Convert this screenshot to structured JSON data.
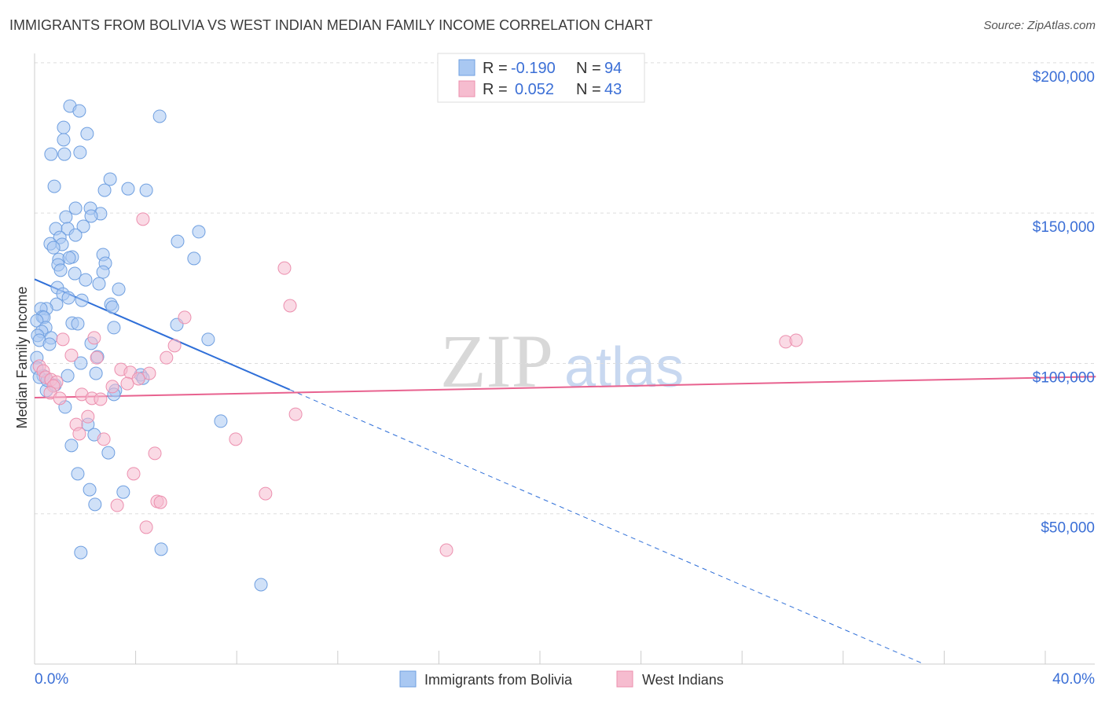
{
  "title": "IMMIGRANTS FROM BOLIVIA VS WEST INDIAN MEDIAN FAMILY INCOME CORRELATION CHART",
  "source": "Source: ZipAtlas.com",
  "watermark": "ZIPatlas",
  "colors": {
    "blue": "#a9c8f2",
    "blue_stroke": "#6f9fe0",
    "blue_line": "#2f6fd8",
    "pink": "#f6bccf",
    "pink_stroke": "#ec8fae",
    "pink_line": "#e8628f",
    "accent_text": "#3b6fd6"
  },
  "chart_data": {
    "type": "scatter",
    "title": "IMMIGRANTS FROM BOLIVIA VS WEST INDIAN MEDIAN FAMILY INCOME CORRELATION CHART",
    "xlabel": "",
    "ylabel": "Median Family Income",
    "x_unit": "%",
    "y_unit": "thousand USD",
    "xlim": [
      0,
      42
    ],
    "ylim": [
      0,
      200
    ],
    "x_tick_labels": [
      "0.0%",
      "40.0%"
    ],
    "y_ticks": [
      {
        "value": 200,
        "label": "$200,000"
      },
      {
        "value": 150,
        "label": "$150,000"
      },
      {
        "value": 100,
        "label": "$100,000"
      },
      {
        "value": 50,
        "label": "$50,000"
      }
    ],
    "legend_stats": [
      {
        "r_label": "R =",
        "r": "-0.190",
        "n_label": "N =",
        "n": "94"
      },
      {
        "r_label": "R =",
        "r": "0.052",
        "n_label": "N =",
        "n": "43"
      }
    ],
    "series": [
      {
        "name": "Immigrants from Bolivia",
        "trend": {
          "x0": 0,
          "y0": 128,
          "x_solid_end": 10.1,
          "x1": 35.2,
          "y1": 0
        },
        "points": [
          [
            1.4,
            185.6
          ],
          [
            1.77,
            184.0
          ],
          [
            4.95,
            182.2
          ],
          [
            1.15,
            178.5
          ],
          [
            2.08,
            176.4
          ],
          [
            1.15,
            174.4
          ],
          [
            0.65,
            169.6
          ],
          [
            1.18,
            169.6
          ],
          [
            1.8,
            170.2
          ],
          [
            2.99,
            161.3
          ],
          [
            0.78,
            158.9
          ],
          [
            2.77,
            157.6
          ],
          [
            3.7,
            158.1
          ],
          [
            4.42,
            157.6
          ],
          [
            1.62,
            151.6
          ],
          [
            2.21,
            151.6
          ],
          [
            2.61,
            149.8
          ],
          [
            1.24,
            148.7
          ],
          [
            2.24,
            149.0
          ],
          [
            0.84,
            144.8
          ],
          [
            1.31,
            144.8
          ],
          [
            1.93,
            145.6
          ],
          [
            6.5,
            143.8
          ],
          [
            1.62,
            142.7
          ],
          [
            1.0,
            141.9
          ],
          [
            5.66,
            140.6
          ],
          [
            0.62,
            139.8
          ],
          [
            1.09,
            139.6
          ],
          [
            0.75,
            138.5
          ],
          [
            0.96,
            134.6
          ],
          [
            1.49,
            135.4
          ],
          [
            1.37,
            135.1
          ],
          [
            2.71,
            136.2
          ],
          [
            2.8,
            133.3
          ],
          [
            6.31,
            134.9
          ],
          [
            0.93,
            132.8
          ],
          [
            1.03,
            131.0
          ],
          [
            1.59,
            129.9
          ],
          [
            2.71,
            130.4
          ],
          [
            2.02,
            127.8
          ],
          [
            2.55,
            126.5
          ],
          [
            0.9,
            125.2
          ],
          [
            3.33,
            124.7
          ],
          [
            1.12,
            123.1
          ],
          [
            1.34,
            121.8
          ],
          [
            1.87,
            121.0
          ],
          [
            0.87,
            119.7
          ],
          [
            3.02,
            119.7
          ],
          [
            3.08,
            118.7
          ],
          [
            0.47,
            118.2
          ],
          [
            0.25,
            118.2
          ],
          [
            0.31,
            115.5
          ],
          [
            0.37,
            115.3
          ],
          [
            0.09,
            114.2
          ],
          [
            0.44,
            111.9
          ],
          [
            1.49,
            113.4
          ],
          [
            1.71,
            113.2
          ],
          [
            3.14,
            111.9
          ],
          [
            5.63,
            112.9
          ],
          [
            0.28,
            110.6
          ],
          [
            0.12,
            109.3
          ],
          [
            0.65,
            108.5
          ],
          [
            0.19,
            107.7
          ],
          [
            0.59,
            106.4
          ],
          [
            2.24,
            106.7
          ],
          [
            6.87,
            108.0
          ],
          [
            2.49,
            102.2
          ],
          [
            1.83,
            100.1
          ],
          [
            2.43,
            96.7
          ],
          [
            4.2,
            96.2
          ],
          [
            1.31,
            95.9
          ],
          [
            0.34,
            95.9
          ],
          [
            4.29,
            95.1
          ],
          [
            3.2,
            91.0
          ],
          [
            0.47,
            91.0
          ],
          [
            3.14,
            89.7
          ],
          [
            1.21,
            85.5
          ],
          [
            7.37,
            80.8
          ],
          [
            2.11,
            79.7
          ],
          [
            2.36,
            76.3
          ],
          [
            1.46,
            72.7
          ],
          [
            2.92,
            70.3
          ],
          [
            1.71,
            63.3
          ],
          [
            2.18,
            58.0
          ],
          [
            3.51,
            57.2
          ],
          [
            2.39,
            53.1
          ],
          [
            1.83,
            37.1
          ],
          [
            5.01,
            38.2
          ],
          [
            8.96,
            26.4
          ],
          [
            0.09,
            101.9
          ],
          [
            0.09,
            98.5
          ],
          [
            0.19,
            95.4
          ],
          [
            0.5,
            94.4
          ],
          [
            0.81,
            92.8
          ]
        ]
      },
      {
        "name": "West Indians",
        "trend": {
          "x0": 0,
          "y0": 88.6,
          "x1": 42,
          "y1": 95.6
        },
        "points": [
          [
            4.29,
            148.0
          ],
          [
            9.89,
            131.7
          ],
          [
            10.11,
            119.2
          ],
          [
            5.94,
            115.3
          ],
          [
            5.54,
            105.9
          ],
          [
            5.22,
            101.9
          ],
          [
            1.12,
            108.0
          ],
          [
            2.36,
            108.5
          ],
          [
            1.46,
            102.7
          ],
          [
            2.46,
            101.9
          ],
          [
            3.42,
            98.0
          ],
          [
            3.79,
            97.0
          ],
          [
            4.54,
            96.7
          ],
          [
            4.11,
            94.9
          ],
          [
            3.67,
            93.3
          ],
          [
            3.08,
            92.3
          ],
          [
            0.19,
            99.1
          ],
          [
            0.34,
            97.5
          ],
          [
            0.44,
            95.4
          ],
          [
            0.65,
            94.6
          ],
          [
            0.87,
            93.8
          ],
          [
            0.75,
            92.5
          ],
          [
            0.62,
            90.2
          ],
          [
            1.0,
            88.4
          ],
          [
            1.87,
            89.7
          ],
          [
            2.27,
            88.4
          ],
          [
            2.61,
            88.1
          ],
          [
            2.11,
            82.3
          ],
          [
            1.65,
            79.7
          ],
          [
            1.77,
            76.6
          ],
          [
            2.74,
            74.8
          ],
          [
            7.96,
            74.8
          ],
          [
            4.76,
            70.1
          ],
          [
            3.92,
            63.3
          ],
          [
            9.14,
            56.7
          ],
          [
            4.85,
            54.1
          ],
          [
            4.98,
            53.8
          ],
          [
            3.27,
            52.8
          ],
          [
            4.42,
            45.5
          ],
          [
            16.3,
            37.9
          ],
          [
            10.33,
            83.1
          ],
          [
            29.73,
            107.2
          ],
          [
            30.14,
            107.7
          ]
        ]
      }
    ]
  }
}
